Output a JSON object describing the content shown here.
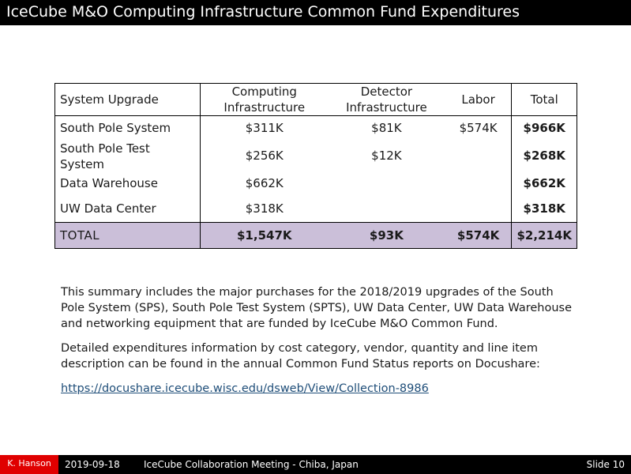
{
  "title": "IceCube M&O Computing Infrastructure Common Fund Expenditures",
  "table": {
    "headers": [
      "System Upgrade",
      "Computing Infrastructure",
      "Detector Infrastructure",
      "Labor",
      "Total"
    ],
    "rows": [
      [
        "South Pole System",
        "$311K",
        "$81K",
        "$574K",
        "$966K"
      ],
      [
        "South Pole Test System",
        "$256K",
        "$12K",
        "",
        "$268K"
      ],
      [
        "Data Warehouse",
        "$662K",
        "",
        "",
        "$662K"
      ],
      [
        "UW Data Center",
        "$318K",
        "",
        "",
        "$318K"
      ]
    ],
    "total_row": [
      "TOTAL",
      "$1,547K",
      "$93K",
      "$574K",
      "$2,214K"
    ],
    "total_row_color": "#cbbfd9"
  },
  "body": {
    "paragraph1": "This summary includes the major purchases for the 2018/2019 upgrades of the South Pole System (SPS), South Pole Test System (SPTS), UW Data Center, UW Data Warehouse and networking equipment that are funded by IceCube M&O Common Fund.",
    "paragraph2": "Detailed expenditures information by cost category, vendor, quantity and line item description can be found in the annual Common Fund Status reports on Docushare:",
    "link": "https://docushare.icecube.wisc.edu/dsweb/View/Collection-8986"
  },
  "footer": {
    "author": "K. Hanson",
    "date": "2019-09-18",
    "event": "IceCube Collaboration Meeting - Chiba, Japan",
    "slide": "Slide 10",
    "author_bg": "#e00000"
  }
}
